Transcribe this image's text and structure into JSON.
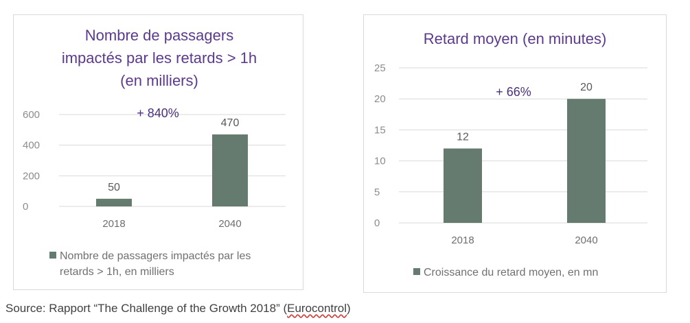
{
  "chart_data": [
    {
      "type": "bar",
      "title_lines": [
        "Nombre de passagers",
        "impactés par les retards > 1h",
        "(en milliers)"
      ],
      "categories": [
        "2018",
        "2040"
      ],
      "series": [
        {
          "name": "Nombre de passagers impactés par les retards > 1h, en milliers",
          "values": [
            50,
            470
          ]
        }
      ],
      "legend_lines": [
        "Nombre de passagers impactés par les",
        "retards > 1h, en milliers"
      ],
      "yticks": [
        0,
        200,
        400,
        600
      ],
      "ylim": [
        0,
        600
      ],
      "annotation": "+ 840%",
      "color": "#667b70",
      "grid": true,
      "legend_position": "bottom"
    },
    {
      "type": "bar",
      "title_lines": [
        "Retard moyen (en minutes)"
      ],
      "categories": [
        "2018",
        "2040"
      ],
      "series": [
        {
          "name": "Croissance du retard moyen, en mn",
          "values": [
            12,
            20
          ]
        }
      ],
      "legend_lines": [
        "Croissance du retard moyen, en mn"
      ],
      "yticks": [
        0,
        5,
        10,
        15,
        20,
        25
      ],
      "ylim": [
        0,
        25
      ],
      "annotation": "+ 66%",
      "color": "#667b70",
      "grid": true,
      "legend_position": "bottom"
    }
  ],
  "source": {
    "prefix": "Source: Rapport “The Challenge of the Growth 2018” (",
    "org": "Eurocontrol",
    "suffix": ")"
  }
}
